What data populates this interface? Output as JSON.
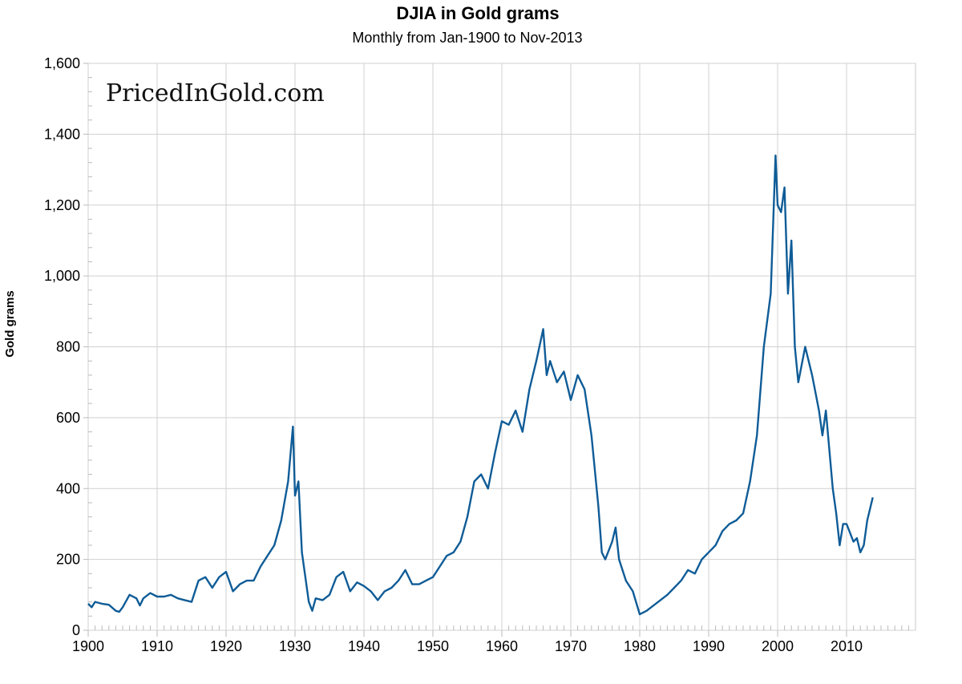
{
  "chart_data": {
    "type": "line",
    "title": "DJIA in Gold grams",
    "subtitle": "Monthly from Jan-1900 to Nov-2013",
    "xlabel": "",
    "ylabel": "Gold grams",
    "watermark": "PricedInGold.com",
    "xlim": [
      1900,
      2020
    ],
    "ylim": [
      0,
      1600
    ],
    "grid": true,
    "x_ticks": [
      1900,
      1910,
      1920,
      1930,
      1940,
      1950,
      1960,
      1970,
      1980,
      1990,
      2000,
      2010
    ],
    "x_tick_labels": [
      "1900",
      "1910",
      "1920",
      "1930",
      "1940",
      "1950",
      "1960",
      "1970",
      "1980",
      "1990",
      "2000",
      "2010"
    ],
    "y_ticks": [
      0,
      200,
      400,
      600,
      800,
      1000,
      1200,
      1400,
      1600
    ],
    "y_tick_labels": [
      "0",
      "200",
      "400",
      "600",
      "800",
      "1,000",
      "1,200",
      "1,400",
      "1,600"
    ],
    "line_color": "#0f5c97",
    "series": [
      {
        "name": "DJIA in Gold grams",
        "x": [
          1900,
          1900.5,
          1901,
          1902,
          1903,
          1904,
          1904.5,
          1905,
          1906,
          1907,
          1907.5,
          1908,
          1909,
          1910,
          1911,
          1912,
          1913,
          1914,
          1915,
          1916,
          1917,
          1918,
          1919,
          1920,
          1921,
          1922,
          1923,
          1924,
          1925,
          1926,
          1927,
          1928,
          1929,
          1929.7,
          1930,
          1930.5,
          1931,
          1932,
          1932.5,
          1933,
          1934,
          1935,
          1936,
          1937,
          1938,
          1939,
          1940,
          1941,
          1942,
          1943,
          1944,
          1945,
          1946,
          1947,
          1948,
          1949,
          1950,
          1951,
          1952,
          1953,
          1954,
          1955,
          1956,
          1957,
          1958,
          1959,
          1960,
          1961,
          1962,
          1963,
          1964,
          1965,
          1966,
          1966.5,
          1967,
          1968,
          1969,
          1970,
          1971,
          1972,
          1973,
          1974,
          1974.5,
          1975,
          1976,
          1976.5,
          1977,
          1978,
          1979,
          1980,
          1981,
          1982,
          1983,
          1984,
          1985,
          1986,
          1987,
          1988,
          1989,
          1990,
          1991,
          1992,
          1993,
          1994,
          1995,
          1996,
          1997,
          1998,
          1999,
          1999.7,
          2000,
          2000.5,
          2001,
          2001.5,
          2002,
          2002.5,
          2003,
          2004,
          2005,
          2006,
          2006.5,
          2007,
          2008,
          2008.5,
          2009,
          2009.5,
          2010,
          2011,
          2011.5,
          2012,
          2012.5,
          2013,
          2013.8
        ],
        "y": [
          75,
          65,
          80,
          75,
          72,
          55,
          52,
          65,
          100,
          90,
          70,
          90,
          105,
          95,
          95,
          100,
          90,
          85,
          80,
          140,
          150,
          120,
          150,
          165,
          110,
          130,
          140,
          140,
          180,
          210,
          240,
          310,
          420,
          575,
          380,
          420,
          220,
          80,
          55,
          90,
          85,
          100,
          150,
          165,
          110,
          135,
          125,
          110,
          85,
          110,
          120,
          140,
          170,
          130,
          130,
          140,
          150,
          180,
          210,
          220,
          250,
          320,
          420,
          440,
          400,
          500,
          590,
          580,
          620,
          560,
          680,
          760,
          850,
          720,
          760,
          700,
          730,
          650,
          720,
          680,
          550,
          350,
          220,
          200,
          250,
          290,
          200,
          140,
          110,
          45,
          55,
          70,
          85,
          100,
          120,
          140,
          170,
          160,
          200,
          220,
          240,
          280,
          300,
          310,
          330,
          420,
          550,
          800,
          950,
          1340,
          1200,
          1180,
          1250,
          950,
          1100,
          800,
          700,
          800,
          720,
          620,
          550,
          620,
          400,
          330,
          240,
          300,
          300,
          250,
          260,
          220,
          240,
          310,
          375
        ]
      }
    ]
  }
}
